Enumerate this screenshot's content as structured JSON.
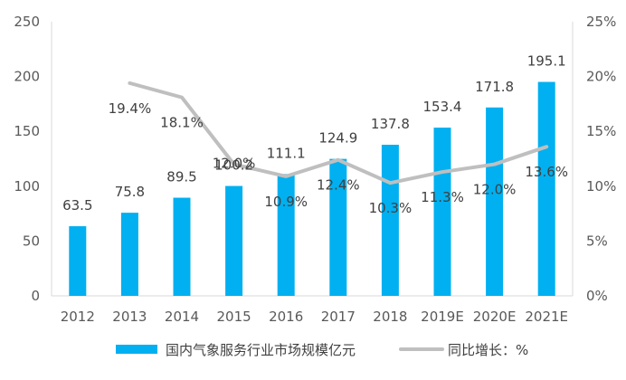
{
  "chart_data": {
    "type": "bar",
    "categories": [
      "2012",
      "2013",
      "2014",
      "2015",
      "2016",
      "2017",
      "2018",
      "2019E",
      "2020E",
      "2021E"
    ],
    "series": [
      {
        "name": "国内气象服务行业市场规模亿元",
        "type": "bar",
        "axis": "left",
        "values": [
          63.5,
          75.8,
          89.5,
          100.2,
          111.1,
          124.9,
          137.8,
          153.4,
          171.8,
          195.1
        ],
        "labels": [
          "63.5",
          "75.8",
          "89.5",
          "100.2",
          "111.1",
          "124.9",
          "137.8",
          "153.4",
          "171.8",
          "195.1"
        ],
        "color": "#00B0F0"
      },
      {
        "name": "同比增长：%",
        "type": "line",
        "axis": "right",
        "values": [
          null,
          19.4,
          18.1,
          12.0,
          10.9,
          12.4,
          10.3,
          11.3,
          12.0,
          13.6
        ],
        "labels": [
          "",
          "19.4%",
          "18.1%",
          "12.0%",
          "10.9%",
          "12.4%",
          "10.3%",
          "11.3%",
          "12.0%",
          "13.6%"
        ],
        "color": "#BFBFBF"
      }
    ],
    "y_left": {
      "min": 0,
      "max": 250,
      "ticks": [
        "0",
        "50",
        "100",
        "150",
        "200",
        "250"
      ]
    },
    "y_right": {
      "min": 0,
      "max": 25,
      "ticks": [
        "0%",
        "5%",
        "10%",
        "15%",
        "20%",
        "25%"
      ]
    },
    "title": "",
    "xlabel": "",
    "ylabel": "",
    "grid": false,
    "legend_position": "bottom"
  }
}
